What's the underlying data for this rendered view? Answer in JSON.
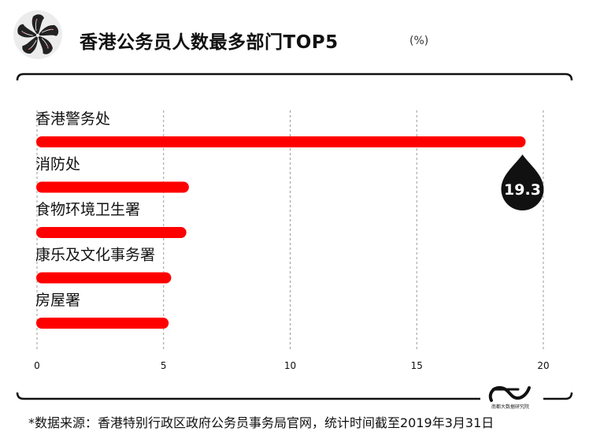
{
  "header": {
    "title": "香港公务员人数最多部门TOP5",
    "unit": "(%)"
  },
  "chart_data": {
    "type": "bar",
    "orientation": "horizontal",
    "title": "香港公务员人数最多部门TOP5",
    "unit": "(%)",
    "categories": [
      "香港警务处",
      "消防处",
      "食物环境卫生署",
      "康乐及文化事务署",
      "房屋署"
    ],
    "values": [
      19.3,
      6.0,
      5.9,
      5.3,
      5.2
    ],
    "highlight_label": "19.3",
    "xlim": [
      0,
      20
    ],
    "xticks": [
      0,
      5,
      10,
      15,
      20
    ],
    "grid": "vertical-dashed",
    "bar_color": "#ff0000"
  },
  "footer": {
    "source": "*数据来源：香港特别行政区政府公务员事务局官网，统计时间截至2019年3月31日",
    "logo_text": "南都大数据研究院"
  },
  "colors": {
    "accent": "#ff0000",
    "text": "#111111",
    "callout": "#111111"
  }
}
